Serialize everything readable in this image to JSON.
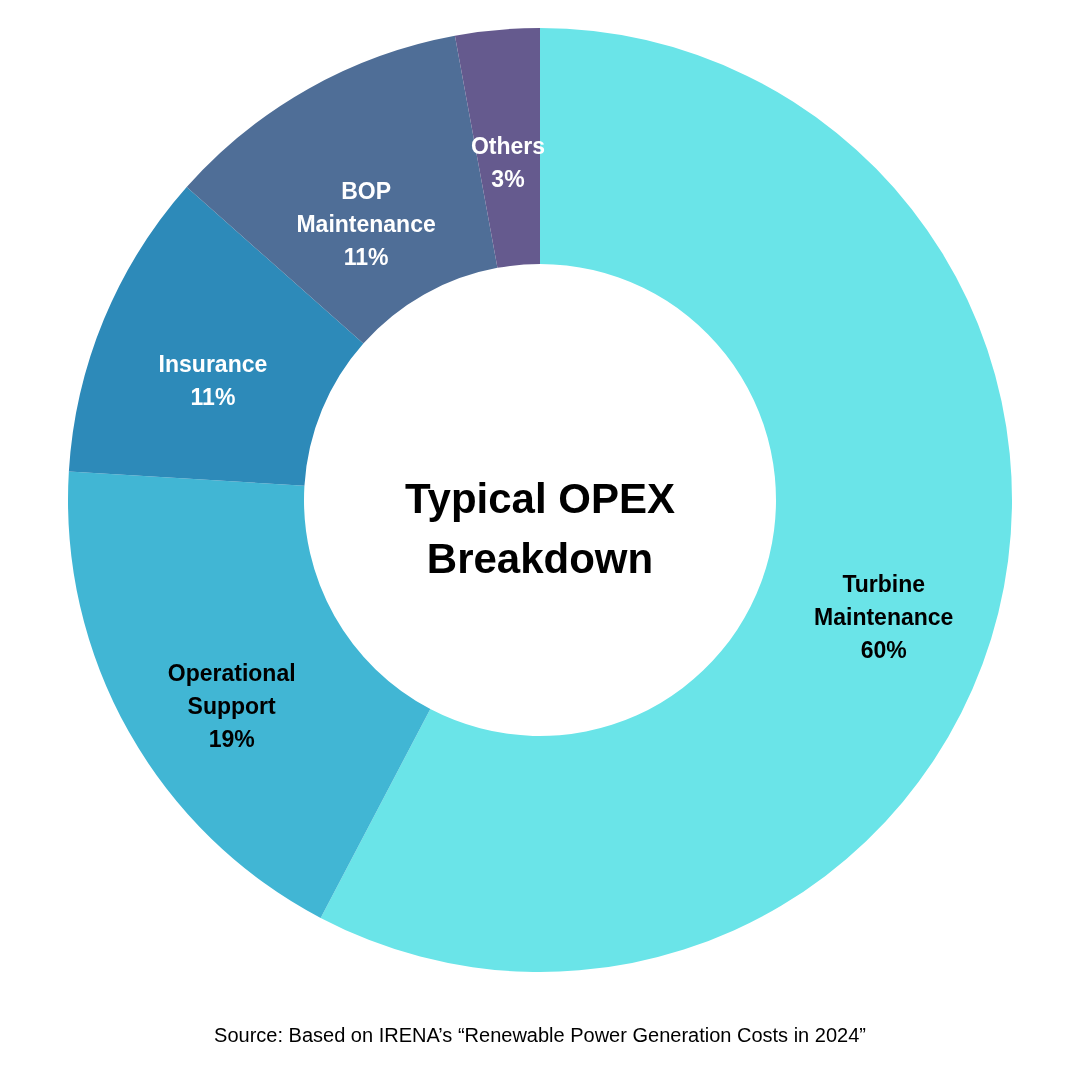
{
  "chart_data": {
    "type": "donut",
    "title": "Typical OPEX Breakdown",
    "categories": [
      "Turbine Maintenance",
      "Operational Support",
      "Insurance",
      "BOP Maintenance",
      "Others"
    ],
    "values": [
      60,
      19,
      11,
      11,
      3
    ],
    "value_labels": [
      "60%",
      "19%",
      "11%",
      "11%",
      "3%"
    ],
    "colors": [
      "#6ae4e8",
      "#41b6d4",
      "#2d8ab9",
      "#4f6e97",
      "#655a8e"
    ],
    "annotations": [
      "Source: Based on IRENA’s “Renewable Power Generation Costs in 2024”"
    ]
  }
}
